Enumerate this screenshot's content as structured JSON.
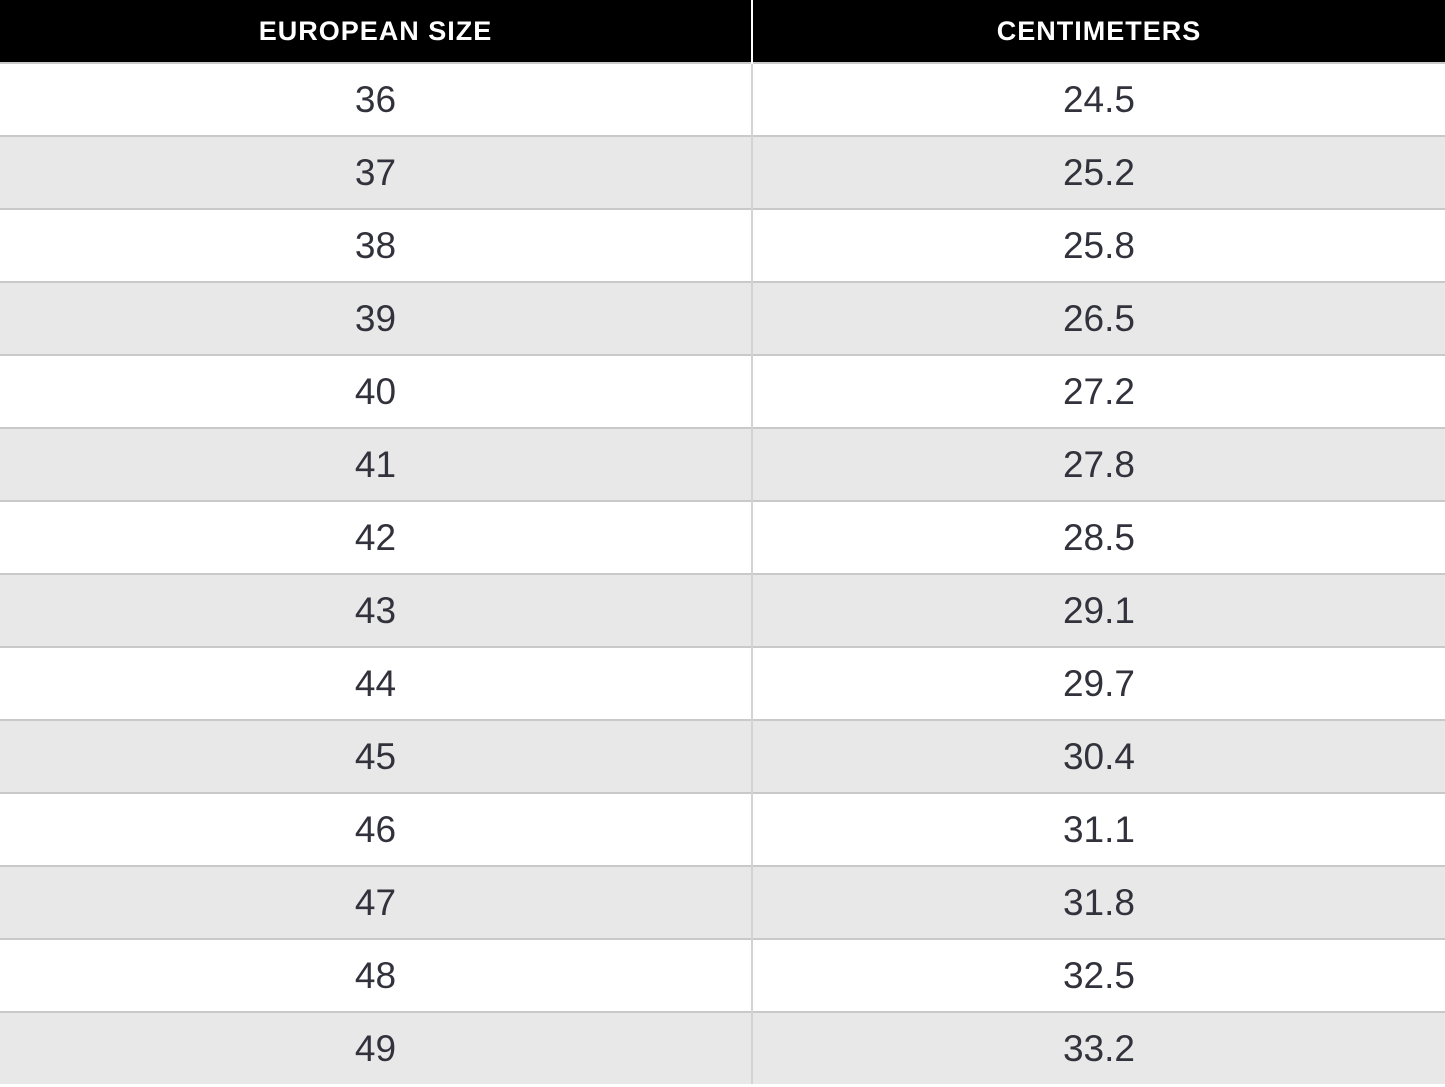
{
  "table": {
    "name": "european-size-to-centimeters-conversion",
    "columns": [
      {
        "id": "eu",
        "label": "EUROPEAN SIZE"
      },
      {
        "id": "cm",
        "label": "CENTIMETERS"
      }
    ],
    "rows": [
      {
        "eu": "36",
        "cm": "24.5"
      },
      {
        "eu": "37",
        "cm": "25.2"
      },
      {
        "eu": "38",
        "cm": "25.8"
      },
      {
        "eu": "39",
        "cm": "26.5"
      },
      {
        "eu": "40",
        "cm": "27.2"
      },
      {
        "eu": "41",
        "cm": "27.8"
      },
      {
        "eu": "42",
        "cm": "28.5"
      },
      {
        "eu": "43",
        "cm": "29.1"
      },
      {
        "eu": "44",
        "cm": "29.7"
      },
      {
        "eu": "45",
        "cm": "30.4"
      },
      {
        "eu": "46",
        "cm": "31.1"
      },
      {
        "eu": "47",
        "cm": "31.8"
      },
      {
        "eu": "48",
        "cm": "32.5"
      },
      {
        "eu": "49",
        "cm": "33.2"
      }
    ]
  },
  "chart_data": {
    "type": "table",
    "title": "",
    "columns": [
      "EUROPEAN SIZE",
      "CENTIMETERS"
    ],
    "rows": [
      [
        36,
        24.5
      ],
      [
        37,
        25.2
      ],
      [
        38,
        25.8
      ],
      [
        39,
        26.5
      ],
      [
        40,
        27.2
      ],
      [
        41,
        27.8
      ],
      [
        42,
        28.5
      ],
      [
        43,
        29.1
      ],
      [
        44,
        29.7
      ],
      [
        45,
        30.4
      ],
      [
        46,
        31.1
      ],
      [
        47,
        31.8
      ],
      [
        48,
        32.5
      ],
      [
        49,
        33.2
      ]
    ]
  },
  "colors": {
    "header_bg": "#000000",
    "header_text": "#ffffff",
    "row_bg": "#ffffff",
    "row_alt_bg": "#e8e8e8",
    "row_border": "#c9c9c9",
    "column_divider": "#d3d3d3",
    "header_divider": "#ffffff",
    "cell_text": "#32323c"
  }
}
